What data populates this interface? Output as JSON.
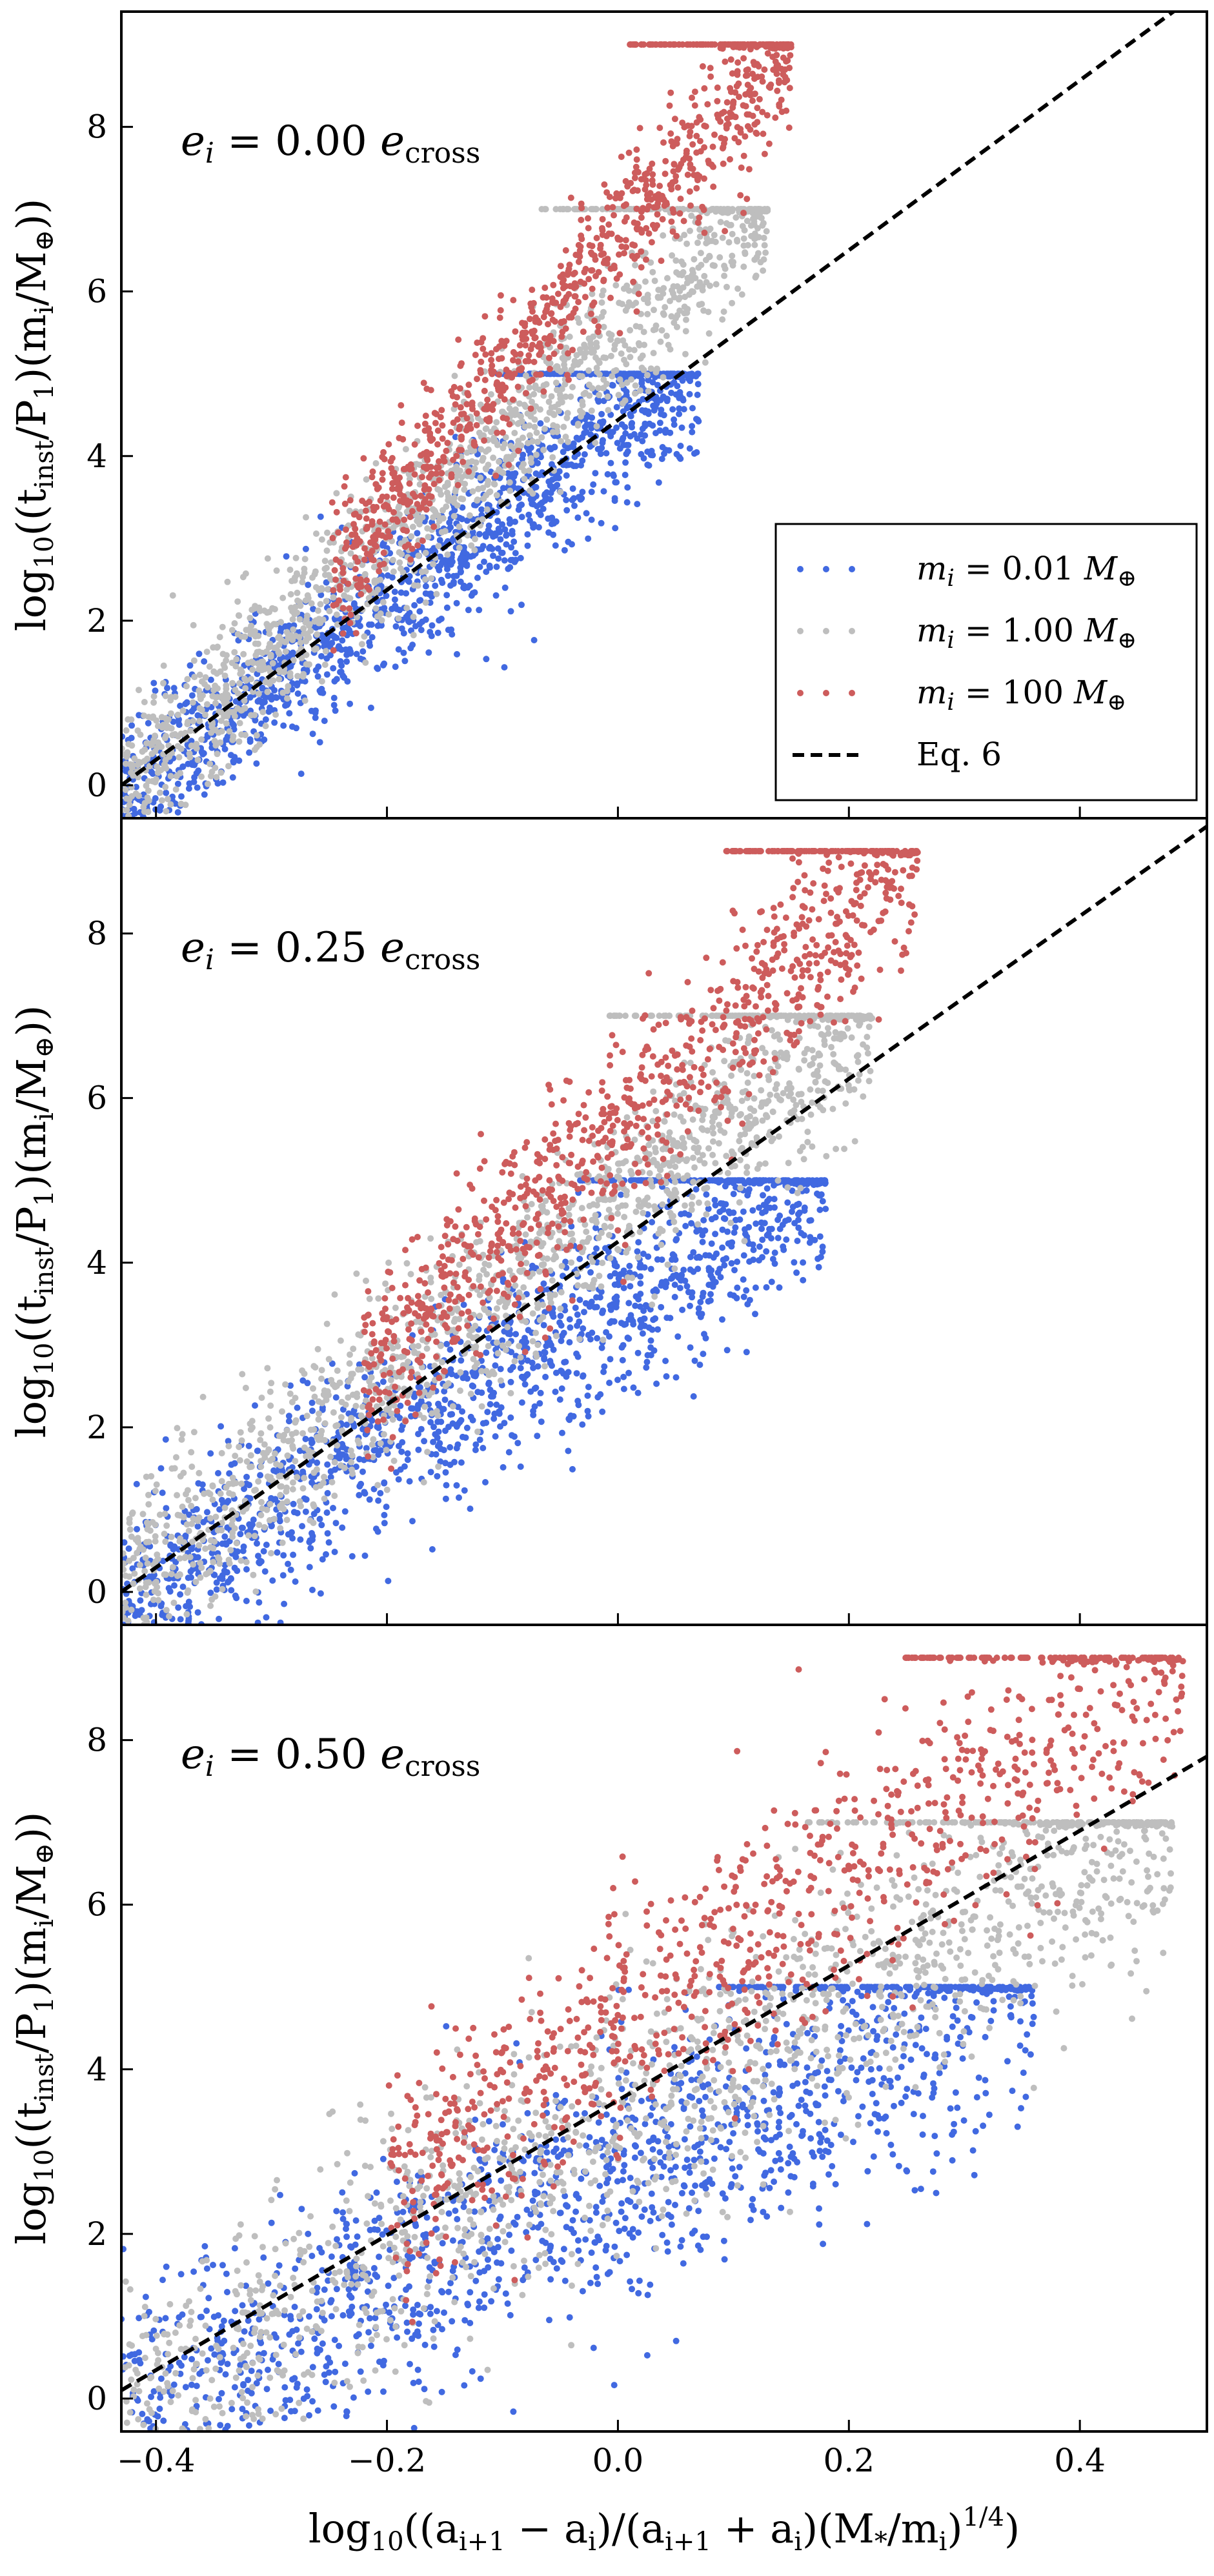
{
  "chart_data": [
    {
      "type": "scatter",
      "panel": "top",
      "annotation": "e_i = 0.00 e_cross",
      "xlabel": "",
      "ylabel": "log10((t_inst/P1)(m_i/M⊕))",
      "xlim": [
        -0.43,
        0.51
      ],
      "ylim": [
        -0.4,
        9.4
      ],
      "xticks": [
        -0.4,
        -0.2,
        0.0,
        0.2,
        0.4
      ],
      "xtick_labels": [
        "−0.4",
        "−0.2",
        "0.0",
        "0.2",
        "0.4"
      ],
      "yticks": [
        0,
        2,
        4,
        6,
        8
      ],
      "ytick_labels": [
        "0",
        "2",
        "4",
        "6",
        "8"
      ],
      "grid": false,
      "legend": {
        "placement": "bottom-right",
        "entries": [
          {
            "label": "m_i = 0.01 M⊕",
            "color": "#4169e1",
            "marker": "dots"
          },
          {
            "label": "m_i = 1.00 M⊕",
            "color": "#bebebe",
            "marker": "dots"
          },
          {
            "label": "m_i = 100 M⊕",
            "color": "#cd5c5c",
            "marker": "dots"
          },
          {
            "label": "Eq. 6",
            "color": "#000000",
            "marker": "dashed-line"
          }
        ]
      },
      "series": [
        {
          "name": "m_i = 0.01 M⊕",
          "color": "#4169e1",
          "x_range": [
            -0.43,
            0.07
          ],
          "y_range": [
            -0.2,
            5.0
          ],
          "cap": 5.0
        },
        {
          "name": "m_i = 1.00 M⊕",
          "color": "#bebebe",
          "x_range": [
            -0.43,
            0.13
          ],
          "y_range": [
            -0.1,
            7.0
          ],
          "cap": 7.0
        },
        {
          "name": "m_i = 100 M⊕",
          "color": "#cd5c5c",
          "x_range": [
            -0.25,
            0.15
          ],
          "y_range": [
            2.4,
            9.0
          ],
          "cap": 9.0
        },
        {
          "name": "Eq. 6",
          "color": "#000000",
          "line": [
            [
              -0.43,
              0.0
            ],
            [
              0.51,
              9.7
            ]
          ]
        }
      ]
    },
    {
      "type": "scatter",
      "panel": "middle",
      "annotation": "e_i = 0.25 e_cross",
      "xlabel": "",
      "ylabel": "log10((t_inst/P1)(m_i/M⊕))",
      "xlim": [
        -0.43,
        0.51
      ],
      "ylim": [
        -0.4,
        9.4
      ],
      "xticks": [
        -0.4,
        -0.2,
        0.0,
        0.2,
        0.4
      ],
      "xtick_labels": [
        "−0.4",
        "−0.2",
        "0.0",
        "0.2",
        "0.4"
      ],
      "yticks": [
        0,
        2,
        4,
        6,
        8
      ],
      "ytick_labels": [
        "0",
        "2",
        "4",
        "6",
        "8"
      ],
      "grid": false,
      "series": [
        {
          "name": "m_i = 0.01 M⊕",
          "color": "#4169e1",
          "x_range": [
            -0.43,
            0.18
          ],
          "y_range": [
            -0.2,
            5.0
          ],
          "cap": 5.0
        },
        {
          "name": "m_i = 1.00 M⊕",
          "color": "#bebebe",
          "x_range": [
            -0.43,
            0.22
          ],
          "y_range": [
            0.0,
            7.0
          ],
          "cap": 7.0
        },
        {
          "name": "m_i = 100 M⊕",
          "color": "#cd5c5c",
          "x_range": [
            -0.22,
            0.26
          ],
          "y_range": [
            2.6,
            9.0
          ],
          "cap": 9.0
        },
        {
          "name": "Eq. 6",
          "color": "#000000",
          "line": [
            [
              -0.43,
              0.0
            ],
            [
              0.51,
              9.3
            ]
          ]
        }
      ]
    },
    {
      "type": "scatter",
      "panel": "bottom",
      "annotation": "e_i = 0.50 e_cross",
      "xlabel": "log10((a_{i+1} − a_i)/(a_{i+1} + a_i)(M_*/m_i)^{1/4})",
      "ylabel": "log10((t_inst/P1)(m_i/M⊕))",
      "xlim": [
        -0.43,
        0.51
      ],
      "ylim": [
        -0.4,
        9.4
      ],
      "xticks": [
        -0.4,
        -0.2,
        0.0,
        0.2,
        0.4
      ],
      "xtick_labels": [
        "−0.4",
        "−0.2",
        "0.0",
        "0.2",
        "0.4"
      ],
      "yticks": [
        0,
        2,
        4,
        6,
        8
      ],
      "ytick_labels": [
        "0",
        "2",
        "4",
        "6",
        "8"
      ],
      "grid": false,
      "series": [
        {
          "name": "m_i = 0.01 M⊕",
          "color": "#4169e1",
          "x_range": [
            -0.43,
            0.36
          ],
          "y_range": [
            -0.3,
            5.0
          ],
          "cap": 5.0
        },
        {
          "name": "m_i = 1.00 M⊕",
          "color": "#bebebe",
          "x_range": [
            -0.43,
            0.48
          ],
          "y_range": [
            -0.1,
            7.0
          ],
          "cap": 7.0
        },
        {
          "name": "m_i = 100 M⊕",
          "color": "#cd5c5c",
          "x_range": [
            -0.2,
            0.49
          ],
          "y_range": [
            2.5,
            9.0
          ],
          "cap": 9.0
        },
        {
          "name": "Eq. 6",
          "color": "#000000",
          "line": [
            [
              -0.43,
              0.1
            ],
            [
              0.51,
              7.8
            ]
          ]
        }
      ]
    }
  ],
  "labels": {
    "ylabel_parts": {
      "pre": "log",
      "sub": "10",
      "body": "((t",
      "inst": "inst",
      "p": "/P",
      "one": "1",
      "close": ")(m",
      "i": "i",
      "mass": "/M",
      "earth": "⊕",
      "end": "))"
    },
    "xlabel_text": "log10((ai+1 − ai)/(ai+1 + ai)(M*/mi)1/4)",
    "ann_prefix": "e",
    "ann_sub": "i",
    "ann_eq": " = ",
    "ann_values": [
      "0.00",
      "0.25",
      "0.50"
    ],
    "ann_e": " e",
    "ann_cross": "cross",
    "legend_eq6": "Eq. 6",
    "legend_m": "m",
    "legend_i": "i",
    "legend_vals": [
      "0.01",
      "1.00",
      "100"
    ],
    "legend_unit": "M",
    "legend_earth": "⊕"
  }
}
